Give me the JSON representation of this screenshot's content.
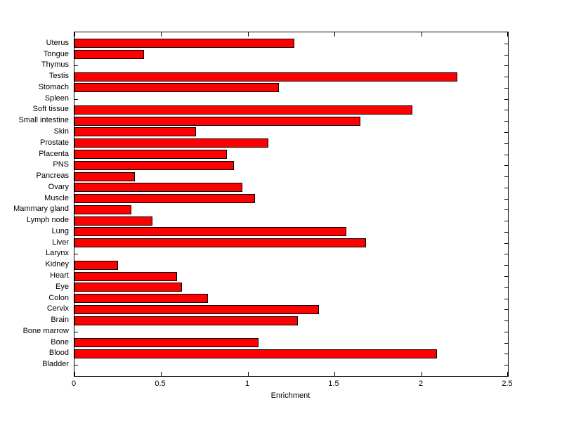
{
  "figure": {
    "background_color": "#ffffff",
    "plot_background_color": "#ffffff",
    "axis_color": "#000000",
    "text_color": "#000000"
  },
  "chart_data": {
    "type": "bar",
    "orientation": "horizontal",
    "title": "",
    "xlabel": "Enrichment",
    "ylabel": "",
    "xlim": [
      0,
      2.5
    ],
    "xticks": [
      0,
      0.5,
      1,
      1.5,
      2,
      2.5
    ],
    "xtick_labels": [
      "0",
      "0.5",
      "1",
      "1.5",
      "2",
      "2.5"
    ],
    "grid": false,
    "legend": null,
    "bar_color": "#ff0000",
    "bar_edge_color": "#000000",
    "categories": [
      "Uterus",
      "Tongue",
      "Thymus",
      "Testis",
      "Stomach",
      "Spleen",
      "Soft tissue",
      "Small intestine",
      "Skin",
      "Prostate",
      "Placenta",
      "PNS",
      "Pancreas",
      "Ovary",
      "Muscle",
      "Mammary gland",
      "Lymph node",
      "Lung",
      "Liver",
      "Larynx",
      "Kidney",
      "Heart",
      "Eye",
      "Colon",
      "Cervix",
      "Brain",
      "Bone marrow",
      "Bone",
      "Blood",
      "Bladder"
    ],
    "values": [
      1.27,
      0.4,
      0,
      2.21,
      1.18,
      0,
      1.95,
      1.65,
      0.7,
      1.12,
      0.88,
      0.92,
      0.35,
      0.97,
      1.04,
      0.33,
      0.45,
      1.57,
      1.68,
      0,
      0.25,
      0.59,
      0.62,
      0.77,
      1.41,
      1.29,
      0,
      1.06,
      2.09,
      0
    ]
  }
}
